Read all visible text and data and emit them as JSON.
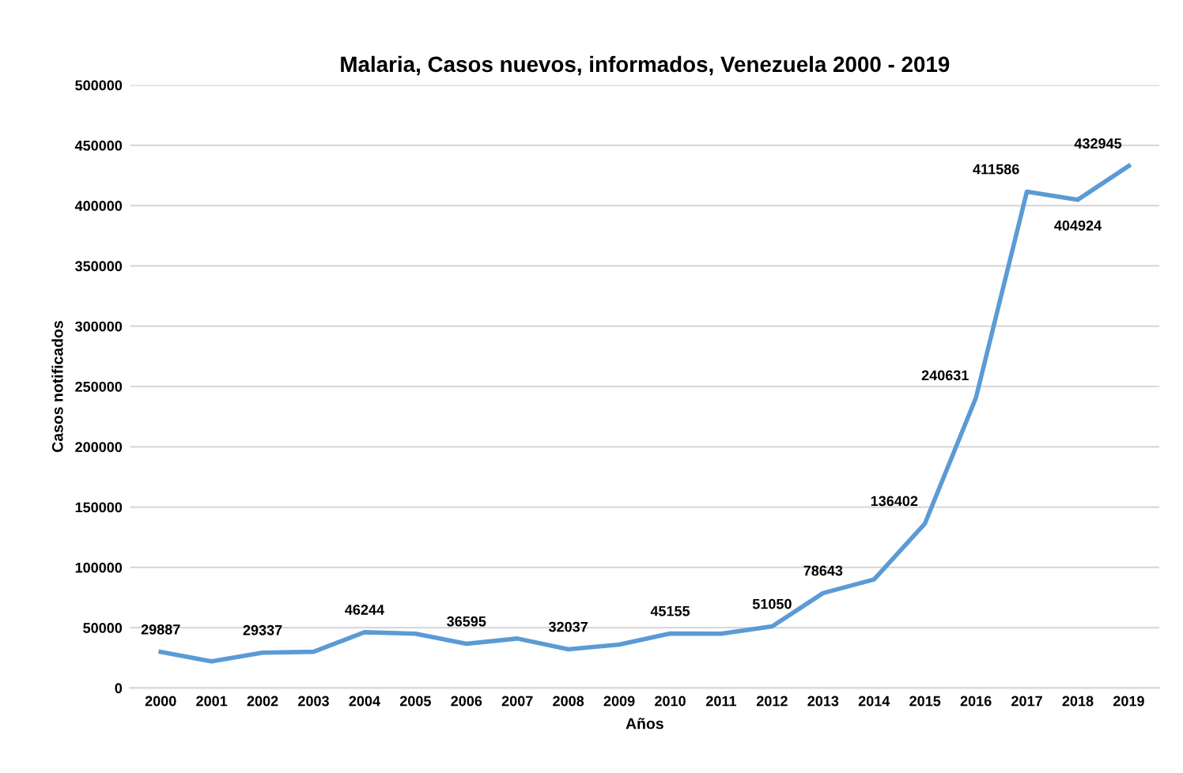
{
  "chart_data": {
    "type": "line",
    "title": "Malaria, Casos nuevos, informados, Venezuela 2000 - 2019",
    "xlabel": "Años",
    "ylabel": "Casos notificados",
    "categories": [
      "2000",
      "2001",
      "2002",
      "2003",
      "2004",
      "2005",
      "2006",
      "2007",
      "2008",
      "2009",
      "2010",
      "2011",
      "2012",
      "2013",
      "2014",
      "2015",
      "2016",
      "2017",
      "2018",
      "2019"
    ],
    "series": [
      {
        "color": "#5b9bd5",
        "values": [
          29887,
          22000,
          29337,
          30000,
          46244,
          45000,
          36595,
          41000,
          32037,
          36000,
          45155,
          45000,
          51050,
          78643,
          90000,
          136402,
          240631,
          411586,
          404924,
          432945
        ],
        "value_labels": [
          "29887",
          null,
          "29337",
          null,
          "46244",
          null,
          "36595",
          null,
          "32037",
          null,
          "45155",
          null,
          "51050",
          "78643",
          null,
          "136402",
          "240631",
          "411586",
          "404924",
          "432945"
        ]
      }
    ],
    "ylim": [
      0,
      500000
    ],
    "yticks": [
      0,
      50000,
      100000,
      150000,
      200000,
      250000,
      300000,
      350000,
      400000,
      450000,
      500000
    ],
    "grid": "y"
  }
}
